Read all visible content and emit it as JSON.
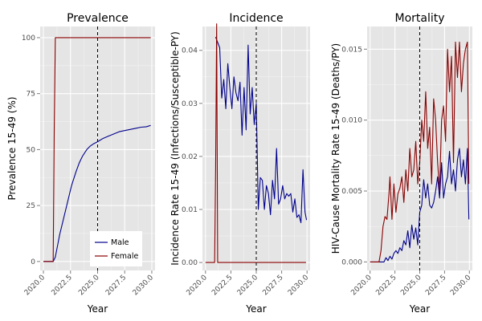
{
  "chart_data": [
    {
      "type": "line",
      "title": "Prevalence",
      "xlabel": "Year",
      "ylabel": "Prevalence 15-49 (%)",
      "xlim": [
        2019.7,
        2030.3
      ],
      "ylim": [
        -4,
        105
      ],
      "xticks": [
        2020.0,
        2022.5,
        2025.0,
        2027.5,
        2030.0
      ],
      "xtick_labels": [
        "2020.0",
        "2022.5",
        "2025.0",
        "2027.5",
        "2030.0"
      ],
      "yticks": [
        0,
        25,
        50,
        75,
        100
      ],
      "ytick_labels": [
        "0",
        "25",
        "50",
        "75",
        "100"
      ],
      "vline": 2025.0,
      "grid": true,
      "legend": {
        "position": "bottom-right",
        "entries": [
          "Male",
          "Female"
        ]
      },
      "series": [
        {
          "name": "Male",
          "color": "#00008b",
          "x": [
            2020.0,
            2020.9,
            2021.1,
            2021.3,
            2021.5,
            2021.7,
            2022.0,
            2022.3,
            2022.6,
            2023.0,
            2023.3,
            2023.6,
            2024.0,
            2024.3,
            2024.6,
            2025.0,
            2025.5,
            2026.0,
            2026.5,
            2027.0,
            2027.5,
            2028.0,
            2028.5,
            2029.0,
            2029.5,
            2029.9
          ],
          "y": [
            0,
            0,
            2,
            7,
            12,
            16,
            22,
            28,
            34,
            40,
            44,
            47,
            50,
            51.5,
            52.5,
            53.5,
            55,
            56,
            57,
            58,
            58.5,
            59,
            59.5,
            60,
            60.2,
            60.8
          ]
        },
        {
          "name": "Female",
          "color": "#8b0000",
          "x": [
            2020.0,
            2020.9,
            2021.0,
            2021.1,
            2029.9
          ],
          "y": [
            0,
            0,
            60,
            100,
            100
          ]
        }
      ]
    },
    {
      "type": "line",
      "title": "Incidence",
      "xlabel": "Year",
      "ylabel": "Incidence Rate 15-49 (Infections/Susceptible-PY)",
      "xlim": [
        2019.7,
        2030.3
      ],
      "ylim": [
        -0.0015,
        0.0445
      ],
      "xticks": [
        2020.0,
        2022.5,
        2025.0,
        2027.5,
        2030.0
      ],
      "xtick_labels": [
        "2020.0",
        "2022.5",
        "2025.0",
        "2027.5",
        "2030.0"
      ],
      "yticks": [
        0.0,
        0.01,
        0.02,
        0.03,
        0.04
      ],
      "ytick_labels": [
        "0.00",
        "0.01",
        "0.02",
        "0.03",
        "0.04"
      ],
      "vline": 2025.0,
      "grid": true,
      "series": [
        {
          "name": "Male",
          "color": "#00008b",
          "x": [
            2021.0,
            2021.2,
            2021.4,
            2021.6,
            2021.8,
            2022.0,
            2022.2,
            2022.4,
            2022.6,
            2022.8,
            2023.0,
            2023.2,
            2023.4,
            2023.6,
            2023.8,
            2024.0,
            2024.2,
            2024.4,
            2024.6,
            2024.8,
            2025.0,
            2025.2,
            2025.4,
            2025.6,
            2025.8,
            2026.0,
            2026.2,
            2026.4,
            2026.6,
            2026.8,
            2027.0,
            2027.2,
            2027.4,
            2027.6,
            2027.8,
            2028.0,
            2028.2,
            2028.4,
            2028.6,
            2028.8,
            2029.0,
            2029.2,
            2029.4,
            2029.6,
            2029.8,
            2029.95
          ],
          "y": [
            0.0425,
            0.0415,
            0.0405,
            0.031,
            0.0345,
            0.029,
            0.0375,
            0.033,
            0.029,
            0.035,
            0.032,
            0.0305,
            0.034,
            0.024,
            0.033,
            0.025,
            0.041,
            0.028,
            0.033,
            0.026,
            0.03,
            0.01,
            0.016,
            0.0155,
            0.01,
            0.0145,
            0.013,
            0.009,
            0.0155,
            0.012,
            0.0215,
            0.011,
            0.012,
            0.0145,
            0.012,
            0.013,
            0.0125,
            0.013,
            0.0095,
            0.012,
            0.0085,
            0.009,
            0.0075,
            0.0175,
            0.0095,
            0.008
          ]
        },
        {
          "name": "Female",
          "color": "#8b0000",
          "x": [
            2020.0,
            2020.9,
            2021.0,
            2021.1,
            2021.2,
            2029.9
          ],
          "y": [
            0,
            0,
            0.018,
            0.045,
            0,
            0
          ]
        }
      ]
    },
    {
      "type": "line",
      "title": "Mortality",
      "xlabel": "Year",
      "ylabel": "HIV-Cause Mortality Rate 15-49 (Deaths/PY)",
      "xlim": [
        2019.7,
        2030.3
      ],
      "ylim": [
        -0.0006,
        0.0166
      ],
      "xticks": [
        2020.0,
        2022.5,
        2025.0,
        2027.5,
        2030.0
      ],
      "xtick_labels": [
        "2020.0",
        "2022.5",
        "2025.0",
        "2027.5",
        "2030.0"
      ],
      "yticks": [
        0.0,
        0.005,
        0.01,
        0.015
      ],
      "ytick_labels": [
        "0.000",
        "0.005",
        "0.010",
        "0.015"
      ],
      "vline": 2025.0,
      "grid": true,
      "series": [
        {
          "name": "Male",
          "color": "#00008b",
          "x": [
            2020.0,
            2021.4,
            2021.6,
            2021.8,
            2022.0,
            2022.2,
            2022.4,
            2022.6,
            2022.8,
            2023.0,
            2023.2,
            2023.4,
            2023.6,
            2023.8,
            2024.0,
            2024.2,
            2024.4,
            2024.6,
            2024.8,
            2025.0,
            2025.2,
            2025.4,
            2025.6,
            2025.8,
            2026.0,
            2026.2,
            2026.4,
            2026.6,
            2026.8,
            2027.0,
            2027.2,
            2027.4,
            2027.6,
            2027.8,
            2028.0,
            2028.2,
            2028.4,
            2028.6,
            2028.8,
            2029.0,
            2029.2,
            2029.4,
            2029.6,
            2029.8,
            2029.95
          ],
          "y": [
            0,
            0,
            0.0003,
            0.0001,
            0.0004,
            0.0002,
            0.0006,
            0.0008,
            0.0006,
            0.001,
            0.0008,
            0.0015,
            0.0012,
            0.0022,
            0.001,
            0.0026,
            0.0016,
            0.0024,
            0.0012,
            0.0035,
            0.004,
            0.0058,
            0.0045,
            0.0055,
            0.004,
            0.0038,
            0.0042,
            0.005,
            0.006,
            0.0045,
            0.007,
            0.0045,
            0.0055,
            0.006,
            0.0078,
            0.0055,
            0.0065,
            0.005,
            0.0072,
            0.008,
            0.006,
            0.0072,
            0.0055,
            0.008,
            0.003
          ]
        },
        {
          "name": "Female",
          "color": "#8b0000",
          "x": [
            2020.0,
            2020.9,
            2021.1,
            2021.3,
            2021.5,
            2021.7,
            2021.9,
            2022.0,
            2022.2,
            2022.4,
            2022.6,
            2022.8,
            2023.0,
            2023.2,
            2023.4,
            2023.6,
            2023.8,
            2024.0,
            2024.2,
            2024.4,
            2024.6,
            2024.8,
            2025.0,
            2025.2,
            2025.4,
            2025.6,
            2025.8,
            2026.0,
            2026.2,
            2026.4,
            2026.6,
            2026.8,
            2027.0,
            2027.2,
            2027.4,
            2027.6,
            2027.8,
            2028.0,
            2028.2,
            2028.4,
            2028.6,
            2028.8,
            2029.0,
            2029.2,
            2029.4,
            2029.6,
            2029.8,
            2029.95
          ],
          "y": [
            0,
            0,
            0.0008,
            0.0025,
            0.0032,
            0.003,
            0.0048,
            0.006,
            0.003,
            0.0055,
            0.0035,
            0.0048,
            0.0052,
            0.006,
            0.0042,
            0.0065,
            0.005,
            0.008,
            0.006,
            0.0065,
            0.0085,
            0.0055,
            0.007,
            0.01,
            0.0085,
            0.012,
            0.008,
            0.0095,
            0.0055,
            0.0115,
            0.01,
            0.007,
            0.005,
            0.01,
            0.011,
            0.0085,
            0.015,
            0.012,
            0.0145,
            0.007,
            0.0155,
            0.013,
            0.0155,
            0.012,
            0.014,
            0.015,
            0.0155,
            0.0055
          ]
        }
      ]
    }
  ]
}
